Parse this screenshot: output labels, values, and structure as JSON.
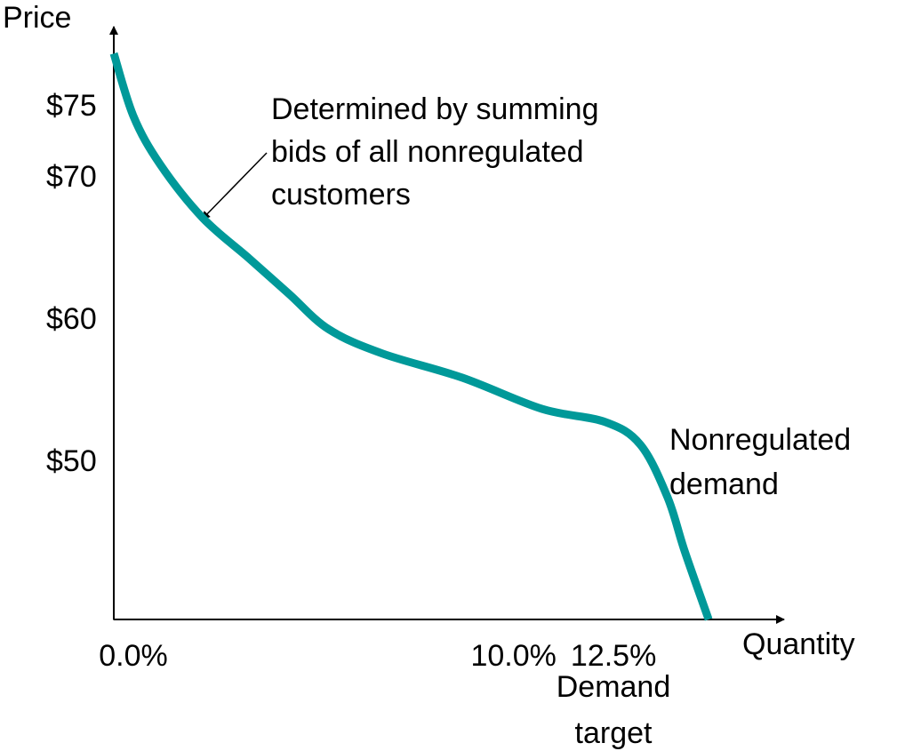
{
  "chart_data": {
    "type": "line",
    "x_label": "Quantity",
    "y_label": "Price",
    "series": [
      {
        "name": "Nonregulated demand",
        "color": "#009999",
        "x": [
          0,
          0.49,
          1.16,
          2.22,
          3.38,
          4.38,
          5.38,
          6.72,
          8.72,
          10.72,
          12.28,
          13.17,
          13.85,
          14.28,
          14.88
        ],
        "values": [
          78.8,
          74.4,
          71.0,
          67.25,
          64.4,
          61.9,
          59.4,
          57.7,
          56.0,
          53.8,
          52.9,
          51.3,
          47.6,
          43.8,
          39.0
        ]
      }
    ],
    "xlim": [
      0,
      16.7
    ],
    "ylim": [
      39,
      80.5
    ],
    "xticks": [
      {
        "value": 0,
        "label": "0.0%"
      },
      {
        "value": 10,
        "label": "10.0%"
      },
      {
        "value": 12.5,
        "label": "12.5%"
      }
    ],
    "yticks": [
      {
        "value": 75,
        "label": "$75"
      },
      {
        "value": 70,
        "label": "$70"
      },
      {
        "value": 60,
        "label": "$60"
      },
      {
        "value": 50,
        "label": "$50"
      }
    ],
    "annotations": [
      {
        "lines": [
          "Determined by summing",
          "bids of all nonregulated",
          "customers"
        ]
      },
      {
        "lines": [
          "Nonregulated",
          "demand"
        ]
      },
      {
        "lines": [
          "Demand",
          "target"
        ]
      }
    ]
  }
}
